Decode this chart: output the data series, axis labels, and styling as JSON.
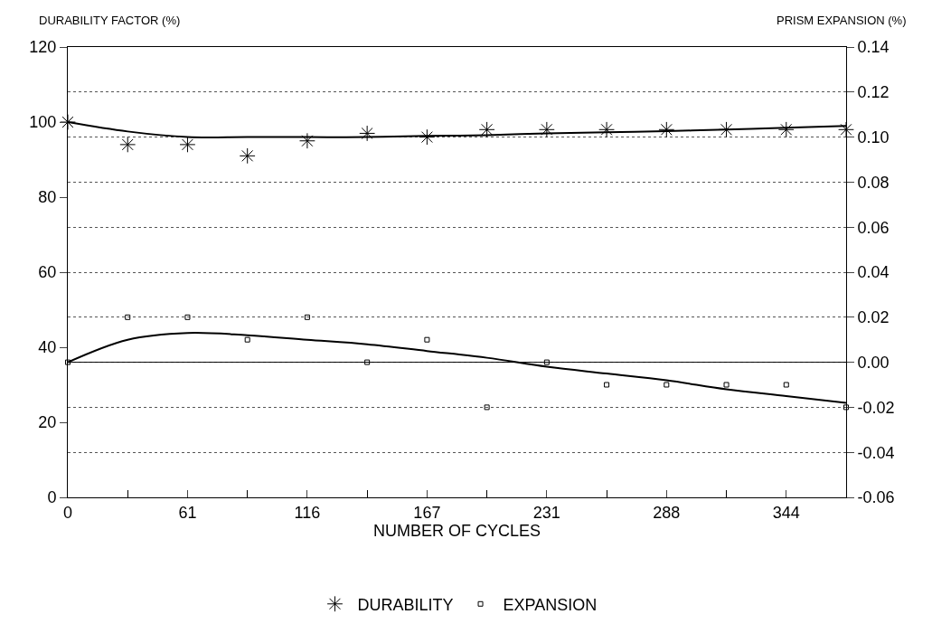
{
  "chart_data": {
    "type": "scatter",
    "xlabel": "NUMBER OF CYCLES",
    "ylabel": "DURABILITY FACTOR (%)",
    "y2label": "PRISM EXPANSION (%)",
    "categories": [
      "0",
      null,
      "61",
      null,
      "116",
      null,
      "167",
      null,
      "231",
      null,
      "288",
      null,
      "344",
      null
    ],
    "series": [
      {
        "name": "DURABILITY",
        "marker": "cross",
        "color": "#000000",
        "values": [
          100,
          94,
          94,
          91,
          95,
          97,
          96,
          98,
          98,
          98,
          98,
          98,
          98,
          98
        ]
      },
      {
        "name": "EXPANSION",
        "marker": "square",
        "color": "#000000",
        "axis": "y2",
        "values": [
          0.0,
          0.02,
          0.02,
          0.01,
          0.02,
          0.0,
          0.01,
          -0.02,
          0.0,
          -0.01,
          -0.01,
          -0.01,
          -0.01,
          -0.02
        ]
      },
      {
        "type": "line",
        "color": "#000000",
        "values": [
          100,
          97.5,
          96,
          96,
          96,
          96,
          96.3,
          96.5,
          97,
          97.3,
          97.6,
          98,
          98.5,
          99
        ]
      },
      {
        "type": "line",
        "color": "#000000",
        "axis": "y2",
        "values": [
          0.0,
          0.01,
          0.013,
          0.012,
          0.01,
          0.008,
          0.005,
          0.002,
          -0.002,
          -0.005,
          -0.008,
          -0.012,
          -0.015,
          -0.018
        ]
      }
    ],
    "ref_lines": [
      {
        "axis": "y2",
        "value": 0,
        "color": "#000000"
      }
    ],
    "ylim": [
      0,
      120
    ],
    "yticks": [
      0,
      20,
      40,
      60,
      80,
      100,
      120
    ],
    "y2lim": [
      -0.06,
      0.14
    ],
    "y2ticks": [
      -0.06,
      -0.04,
      -0.02,
      {
        "value": 0,
        "label": "0.00"
      },
      0.02,
      0.04,
      0.06,
      0.08,
      {
        "value": 0.1,
        "label": "0.10"
      },
      0.12,
      0.14
    ],
    "grid": "y2",
    "legend": "bottom"
  }
}
